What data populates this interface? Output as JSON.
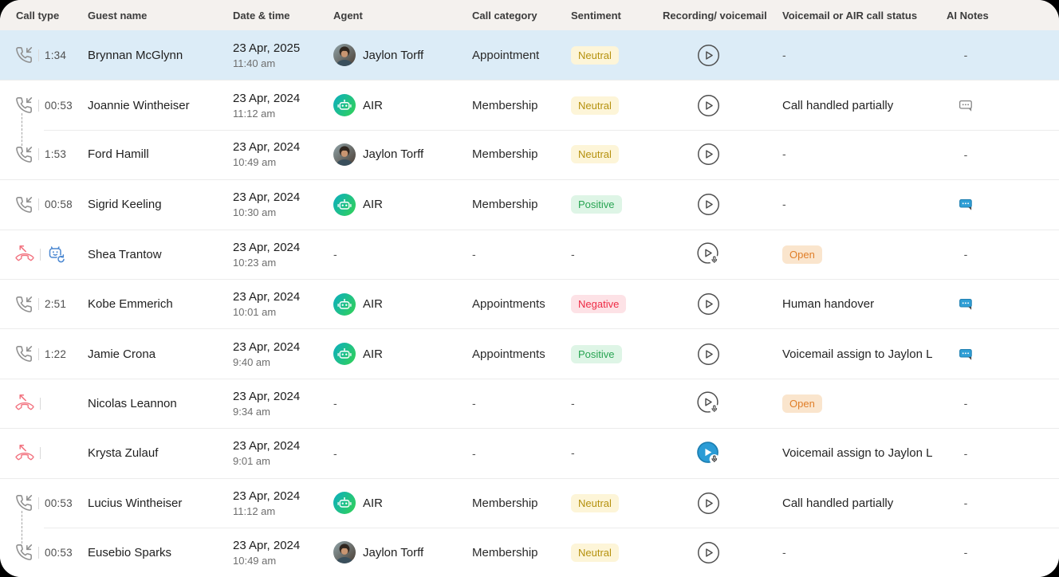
{
  "table": {
    "columns": [
      "Call type",
      "Guest name",
      "Date & time",
      "Agent",
      "Call category",
      "Sentiment",
      "Recording/ voicemail",
      "Voicemail or AIR call status",
      "AI Notes"
    ],
    "rows": [
      {
        "highlighted": true,
        "call_type": "incoming",
        "duration": "1:34",
        "guest_name": "Brynnan McGlynn",
        "date": "23 Apr, 2025",
        "time": "11:40 am",
        "agent": {
          "kind": "human",
          "label": "Jaylon Torff"
        },
        "call_category": "Appointment",
        "sentiment": "Neutral",
        "recording": "play",
        "status": {
          "kind": "dash",
          "label": "-"
        },
        "ai_notes": "-"
      },
      {
        "linked_to_next": true,
        "call_type": "incoming",
        "duration": "00:53",
        "guest_name": "Joannie Wintheiser",
        "date": "23 Apr, 2024",
        "time": "11:12 am",
        "agent": {
          "kind": "air",
          "label": "AIR"
        },
        "call_category": "Membership",
        "sentiment": "Neutral",
        "recording": "play",
        "status": {
          "kind": "text",
          "label": "Call handled partially"
        },
        "ai_notes": "outline-note"
      },
      {
        "call_type": "incoming",
        "duration": "1:53",
        "guest_name": "Ford Hamill",
        "date": "23 Apr, 2024",
        "time": "10:49 am",
        "agent": {
          "kind": "human",
          "label": "Jaylon Torff"
        },
        "call_category": "Membership",
        "sentiment": "Neutral",
        "recording": "play",
        "status": {
          "kind": "dash",
          "label": "-"
        },
        "ai_notes": "-"
      },
      {
        "call_type": "incoming",
        "duration": "00:58",
        "guest_name": "Sigrid Keeling",
        "date": "23 Apr, 2024",
        "time": "10:30 am",
        "agent": {
          "kind": "air",
          "label": "AIR"
        },
        "call_category": "Membership",
        "sentiment": "Positive",
        "recording": "play",
        "status": {
          "kind": "dash",
          "label": "-"
        },
        "ai_notes": "filled-note"
      },
      {
        "call_type": "missed",
        "ai_callback": true,
        "duration": "",
        "guest_name": "Shea Trantow",
        "date": "23 Apr, 2024",
        "time": "10:23 am",
        "agent": {
          "kind": "dash",
          "label": "-"
        },
        "call_category": "-",
        "sentiment": "-",
        "recording": "voicemail",
        "status": {
          "kind": "badge",
          "label": "Open"
        },
        "ai_notes": "-"
      },
      {
        "call_type": "incoming",
        "duration": "2:51",
        "guest_name": "Kobe Emmerich",
        "date": "23 Apr, 2024",
        "time": "10:01 am",
        "agent": {
          "kind": "air",
          "label": "AIR"
        },
        "call_category": "Appointments",
        "sentiment": "Negative",
        "recording": "play",
        "status": {
          "kind": "text",
          "label": "Human handover"
        },
        "ai_notes": "filled-note"
      },
      {
        "call_type": "incoming",
        "duration": "1:22",
        "guest_name": "Jamie Crona",
        "date": "23 Apr, 2024",
        "time": "9:40 am",
        "agent": {
          "kind": "air",
          "label": "AIR"
        },
        "call_category": "Appointments",
        "sentiment": "Positive",
        "recording": "play",
        "status": {
          "kind": "text",
          "label": "Voicemail assign to Jaylon L"
        },
        "ai_notes": "filled-note"
      },
      {
        "call_type": "missed",
        "duration": "",
        "guest_name": "Nicolas Leannon",
        "date": "23 Apr, 2024",
        "time": "9:34 am",
        "agent": {
          "kind": "dash",
          "label": "-"
        },
        "call_category": "-",
        "sentiment": "-",
        "recording": "voicemail",
        "status": {
          "kind": "badge",
          "label": "Open"
        },
        "ai_notes": "-"
      },
      {
        "call_type": "missed",
        "duration": "",
        "guest_name": "Krysta Zulauf",
        "date": "23 Apr, 2024",
        "time": "9:01 am",
        "agent": {
          "kind": "dash",
          "label": "-"
        },
        "call_category": "-",
        "sentiment": "-",
        "recording": "voicemail-active",
        "status": {
          "kind": "text",
          "label": "Voicemail assign to Jaylon L"
        },
        "ai_notes": "-"
      },
      {
        "linked_to_next": true,
        "call_type": "incoming",
        "duration": "00:53",
        "guest_name": "Lucius Wintheiser",
        "date": "23 Apr, 2024",
        "time": "11:12 am",
        "agent": {
          "kind": "air",
          "label": "AIR"
        },
        "call_category": "Membership",
        "sentiment": "Neutral",
        "recording": "play",
        "status": {
          "kind": "text",
          "label": "Call handled partially"
        },
        "ai_notes": "-"
      },
      {
        "call_type": "incoming",
        "duration": "00:53",
        "guest_name": "Eusebio Sparks",
        "date": "23 Apr, 2024",
        "time": "10:49 am",
        "agent": {
          "kind": "human",
          "label": "Jaylon Torff"
        },
        "call_category": "Membership",
        "sentiment": "Neutral",
        "recording": "play",
        "status": {
          "kind": "dash",
          "label": "-"
        },
        "ai_notes": "-"
      }
    ]
  },
  "icons": {
    "incoming": "incoming-call-icon",
    "missed": "missed-call-icon",
    "ai_callback": "ai-callback-robot-icon",
    "air_agent": "air-robot-avatar",
    "human_agent": "agent-photo-avatar",
    "play": "play-recording-icon",
    "voicemail": "voicemail-play-icon",
    "voicemail-active": "voicemail-playing-icon",
    "outline-note": "ai-note-icon",
    "filled-note": "ai-note-filled-icon"
  },
  "colors": {
    "header_bg": "#f4f1ee",
    "highlight_row_bg": "#dcecf7",
    "missed_icon": "#f2727f",
    "incoming_icon": "#8f8f8f",
    "air_gradient_start": "#0eb0b8",
    "air_gradient_end": "#30d05c",
    "neutral_badge_bg": "#fdf5d8",
    "neutral_badge_text": "#b5910e",
    "positive_badge_bg": "#def5e6",
    "positive_badge_text": "#28a452",
    "negative_badge_bg": "#fde2e6",
    "negative_badge_text": "#ee2c46",
    "open_badge_bg": "#fae5cd",
    "open_badge_text": "#e07e28",
    "note_filled_blue": "#2f9fd6",
    "active_play_blue": "#2b9cd6"
  }
}
